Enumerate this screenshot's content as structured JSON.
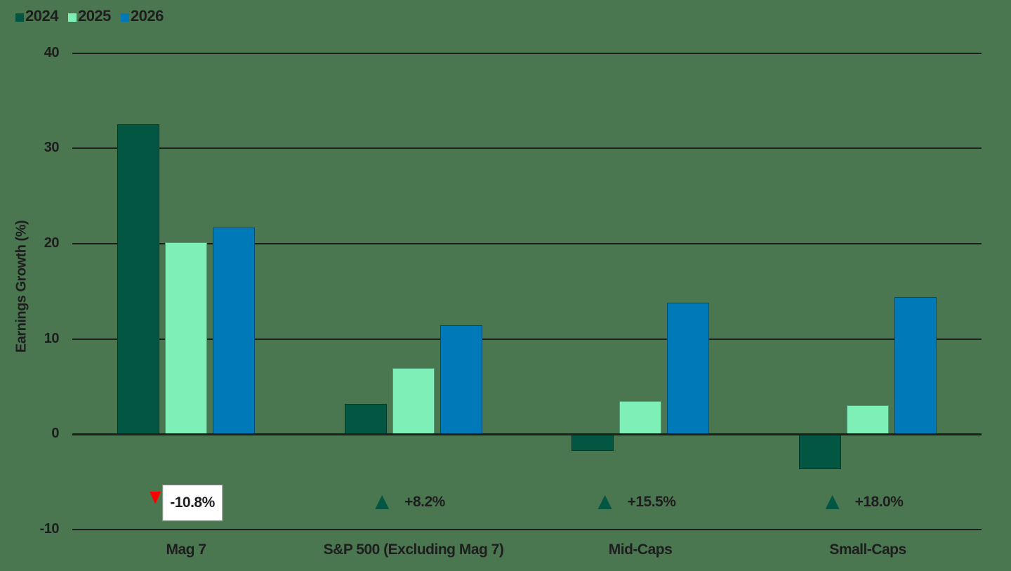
{
  "legend": [
    {
      "label": "2024",
      "color": "#035641"
    },
    {
      "label": "2025",
      "color": "#7eefb7"
    },
    {
      "label": "2026",
      "color": "#0079b8"
    }
  ],
  "yaxis": {
    "label": "Earnings Growth (%)",
    "ticks": [
      "40",
      "30",
      "20",
      "10",
      "0",
      "-10"
    ]
  },
  "categories": [
    "Mag 7",
    "S&P 500 (Excluding Mag 7)",
    "Mid-Caps",
    "Small-Caps"
  ],
  "annotations": [
    {
      "text": "-10.8%",
      "direction": "down",
      "color": "#ff0000",
      "boxed": true
    },
    {
      "text": "+8.2%",
      "direction": "up",
      "color": "#035641",
      "boxed": false
    },
    {
      "text": "+15.5%",
      "direction": "up",
      "color": "#035641",
      "boxed": false
    },
    {
      "text": "+18.0%",
      "direction": "up",
      "color": "#035641",
      "boxed": false
    }
  ],
  "colors": {
    "background": "#4a7650",
    "text": "#1e1e1e",
    "grid": "#1e1e1e"
  },
  "chart_data": {
    "type": "bar",
    "title": "",
    "categories": [
      "Mag 7",
      "S&P 500 (Excluding Mag 7)",
      "Mid-Caps",
      "Small-Caps"
    ],
    "series": [
      {
        "name": "2024",
        "color": "#035641",
        "values": [
          32.5,
          3.2,
          -1.8,
          -3.7
        ]
      },
      {
        "name": "2025",
        "color": "#7eefb7",
        "values": [
          20.1,
          6.9,
          3.5,
          3.0
        ]
      },
      {
        "name": "2026",
        "color": "#0079b8",
        "values": [
          21.7,
          11.4,
          13.8,
          14.4
        ]
      }
    ],
    "xlabel": "",
    "ylabel": "Earnings Growth (%)",
    "ylim": [
      -10,
      40
    ],
    "yticks": [
      -10,
      0,
      10,
      20,
      30,
      40
    ],
    "grid": true,
    "legend_position": "top-left",
    "annotations": [
      {
        "category": "Mag 7",
        "text": "-10.8%",
        "marker": "red down triangle"
      },
      {
        "category": "S&P 500 (Excluding Mag 7)",
        "text": "+8.2%",
        "marker": "green up triangle"
      },
      {
        "category": "Mid-Caps",
        "text": "+15.5%",
        "marker": "green up triangle"
      },
      {
        "category": "Small-Caps",
        "text": "+18.0%",
        "marker": "green up triangle"
      }
    ]
  }
}
